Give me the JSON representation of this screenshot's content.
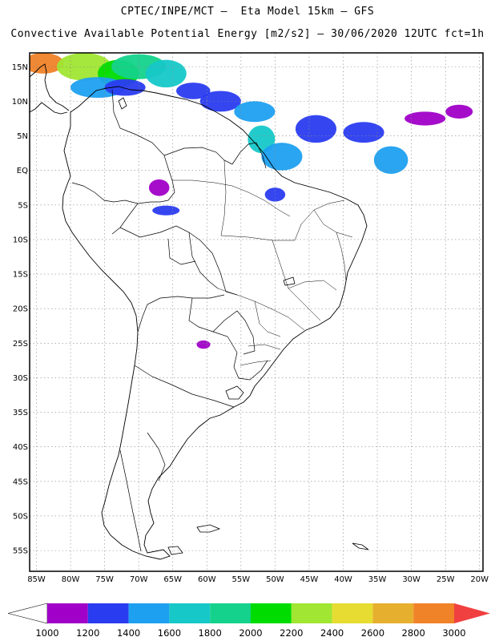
{
  "title_line1": "CPTEC/INPE/MCT —  Eta Model 15km — GFS",
  "title_line2": "Convective Available Potential Energy [m2/s2] — 30/06/2020 12UTC fct=1h",
  "map_extent": {
    "lon_min": -86,
    "lon_max": -19.5,
    "lat_min": -58,
    "lat_max": 17
  },
  "lat_ticks": [
    {
      "value": 15,
      "label": "15N"
    },
    {
      "value": 10,
      "label": "10N"
    },
    {
      "value": 5,
      "label": "5N"
    },
    {
      "value": 0,
      "label": "EQ"
    },
    {
      "value": -5,
      "label": "5S"
    },
    {
      "value": -10,
      "label": "10S"
    },
    {
      "value": -15,
      "label": "15S"
    },
    {
      "value": -20,
      "label": "20S"
    },
    {
      "value": -25,
      "label": "25S"
    },
    {
      "value": -30,
      "label": "30S"
    },
    {
      "value": -35,
      "label": "35S"
    },
    {
      "value": -40,
      "label": "40S"
    },
    {
      "value": -45,
      "label": "45S"
    },
    {
      "value": -50,
      "label": "50S"
    },
    {
      "value": -55,
      "label": "55S"
    }
  ],
  "lon_ticks": [
    {
      "value": -85,
      "label": "85W"
    },
    {
      "value": -80,
      "label": "80W"
    },
    {
      "value": -75,
      "label": "75W"
    },
    {
      "value": -70,
      "label": "70W"
    },
    {
      "value": -65,
      "label": "65W"
    },
    {
      "value": -60,
      "label": "60W"
    },
    {
      "value": -55,
      "label": "55W"
    },
    {
      "value": -50,
      "label": "50W"
    },
    {
      "value": -45,
      "label": "45W"
    },
    {
      "value": -40,
      "label": "40W"
    },
    {
      "value": -35,
      "label": "35W"
    },
    {
      "value": -30,
      "label": "30W"
    },
    {
      "value": -25,
      "label": "25W"
    },
    {
      "value": -20,
      "label": "20W"
    }
  ],
  "colorbar": {
    "levels": [
      1000,
      1200,
      1400,
      1600,
      1800,
      2000,
      2200,
      2400,
      2600,
      2800,
      3000
    ],
    "colors": [
      "#a000c8",
      "#2a3cf0",
      "#1ea0f0",
      "#16c8c8",
      "#14d28c",
      "#00dc00",
      "#a0e632",
      "#e6dc32",
      "#e6af2d",
      "#f08228"
    ],
    "over_color": "#f04040",
    "under_color": "#ffffff"
  },
  "chart_data": {
    "type": "heatmap",
    "variable": "Convective Available Potential Energy",
    "units": "m2/s2",
    "regions": [
      {
        "lon": -84,
        "lat": 15.5,
        "rx": 3,
        "ry": 1.5,
        "value": 2900
      },
      {
        "lon": -78,
        "lat": 15.0,
        "rx": 4,
        "ry": 2,
        "value": 2300
      },
      {
        "lon": -73,
        "lat": 14.0,
        "rx": 3,
        "ry": 2,
        "value": 2100
      },
      {
        "lon": -70,
        "lat": 15.0,
        "rx": 4,
        "ry": 1.8,
        "value": 1900
      },
      {
        "lon": -66,
        "lat": 14.0,
        "rx": 3,
        "ry": 2,
        "value": 1700
      },
      {
        "lon": -76,
        "lat": 12.0,
        "rx": 4,
        "ry": 1.5,
        "value": 1500
      },
      {
        "lon": -72,
        "lat": 12.0,
        "rx": 3,
        "ry": 1.2,
        "value": 1300
      },
      {
        "lon": -62,
        "lat": 11.5,
        "rx": 2.5,
        "ry": 1.2,
        "value": 1200
      },
      {
        "lon": -58,
        "lat": 10.0,
        "rx": 3,
        "ry": 1.5,
        "value": 1200
      },
      {
        "lon": -53,
        "lat": 8.5,
        "rx": 3,
        "ry": 1.5,
        "value": 1400
      },
      {
        "lon": -52,
        "lat": 4.5,
        "rx": 2,
        "ry": 2,
        "value": 1600
      },
      {
        "lon": -49,
        "lat": 2.0,
        "rx": 3,
        "ry": 2,
        "value": 1400
      },
      {
        "lon": -44,
        "lat": 6.0,
        "rx": 3,
        "ry": 2,
        "value": 1200
      },
      {
        "lon": -37,
        "lat": 5.5,
        "rx": 3,
        "ry": 1.5,
        "value": 1300
      },
      {
        "lon": -33,
        "lat": 1.5,
        "rx": 2.5,
        "ry": 2,
        "value": 1500
      },
      {
        "lon": -28,
        "lat": 7.5,
        "rx": 3,
        "ry": 1,
        "value": 1100
      },
      {
        "lon": -23,
        "lat": 8.5,
        "rx": 2,
        "ry": 1,
        "value": 1000
      },
      {
        "lon": -67,
        "lat": -2.5,
        "rx": 1.5,
        "ry": 1.2,
        "value": 1100
      },
      {
        "lon": -66,
        "lat": -5.8,
        "rx": 2,
        "ry": 0.7,
        "value": 1200
      },
      {
        "lon": -50,
        "lat": -3.5,
        "rx": 1.5,
        "ry": 1,
        "value": 1200
      },
      {
        "lon": -60.5,
        "lat": -25.2,
        "rx": 1,
        "ry": 0.6,
        "value": 1100
      }
    ]
  }
}
